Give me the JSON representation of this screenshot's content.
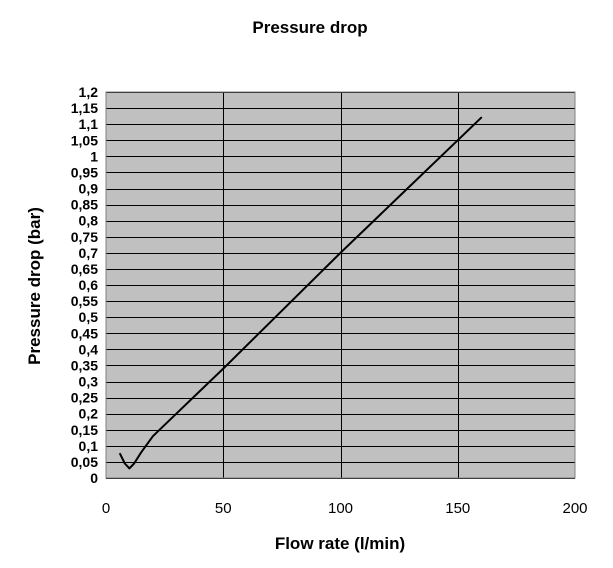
{
  "chart_data": {
    "type": "line",
    "title": "Pressure drop",
    "xlabel": "Flow rate (l/min)",
    "ylabel": "Pressure drop (bar)",
    "xlim": [
      0,
      200
    ],
    "ylim": [
      0,
      1.2
    ],
    "x_ticks": [
      0,
      50,
      100,
      150,
      200
    ],
    "x_tick_labels": [
      "0",
      "50",
      "100",
      "150",
      "200"
    ],
    "y_ticks": [
      0,
      0.05,
      0.1,
      0.15,
      0.2,
      0.25,
      0.3,
      0.35,
      0.4,
      0.45,
      0.5,
      0.55,
      0.6,
      0.65,
      0.7,
      0.75,
      0.8,
      0.85,
      0.9,
      0.95,
      1,
      1.05,
      1.1,
      1.15,
      1.2
    ],
    "y_tick_labels": [
      "0",
      "0,05",
      "0,1",
      "0,15",
      "0,2",
      "0,25",
      "0,3",
      "0,35",
      "0,4",
      "0,45",
      "0,5",
      "0,55",
      "0,6",
      "0,65",
      "0,7",
      "0,75",
      "0,8",
      "0,85",
      "0,9",
      "0,95",
      "1",
      "1,05",
      "1,1",
      "1,15",
      "1,2"
    ],
    "grid": true,
    "series": [
      {
        "name": "Pressure drop",
        "x": [
          6,
          8,
          10,
          12,
          15,
          20,
          30,
          40,
          50,
          75,
          100,
          125,
          150,
          160
        ],
        "y": [
          0.075,
          0.045,
          0.03,
          0.045,
          0.08,
          0.13,
          0.2,
          0.27,
          0.34,
          0.52,
          0.7,
          0.875,
          1.05,
          1.12
        ]
      }
    ],
    "colors": {
      "plot_background": "#c0c0c0",
      "gridline": "#000000",
      "series_line": "#000000"
    }
  }
}
